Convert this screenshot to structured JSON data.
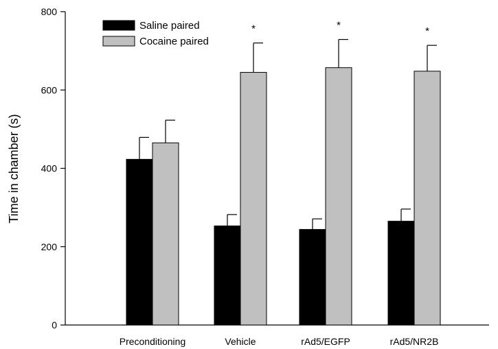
{
  "chart_data": {
    "type": "bar",
    "title": "",
    "xlabel": "",
    "ylabel": "Time in chamber (s)",
    "ylim": [
      0,
      800
    ],
    "yticks": [
      0,
      200,
      400,
      600,
      800
    ],
    "grid": false,
    "legend_position": "top-left",
    "categories": [
      "Preconditioning",
      "Vehicle",
      "rAd5/EGFP",
      "rAd5/NR2B"
    ],
    "series": [
      {
        "name": "Saline paired",
        "color": "#000000",
        "values": [
          423,
          253,
          244,
          265
        ],
        "errors": [
          56,
          29,
          27,
          31
        ]
      },
      {
        "name": "Cocaine paired",
        "color": "#c0c0c0",
        "values": [
          465,
          645,
          657,
          648
        ],
        "errors": [
          58,
          75,
          72,
          66
        ]
      }
    ],
    "annotations": [
      "",
      "*",
      "*",
      "*"
    ]
  }
}
